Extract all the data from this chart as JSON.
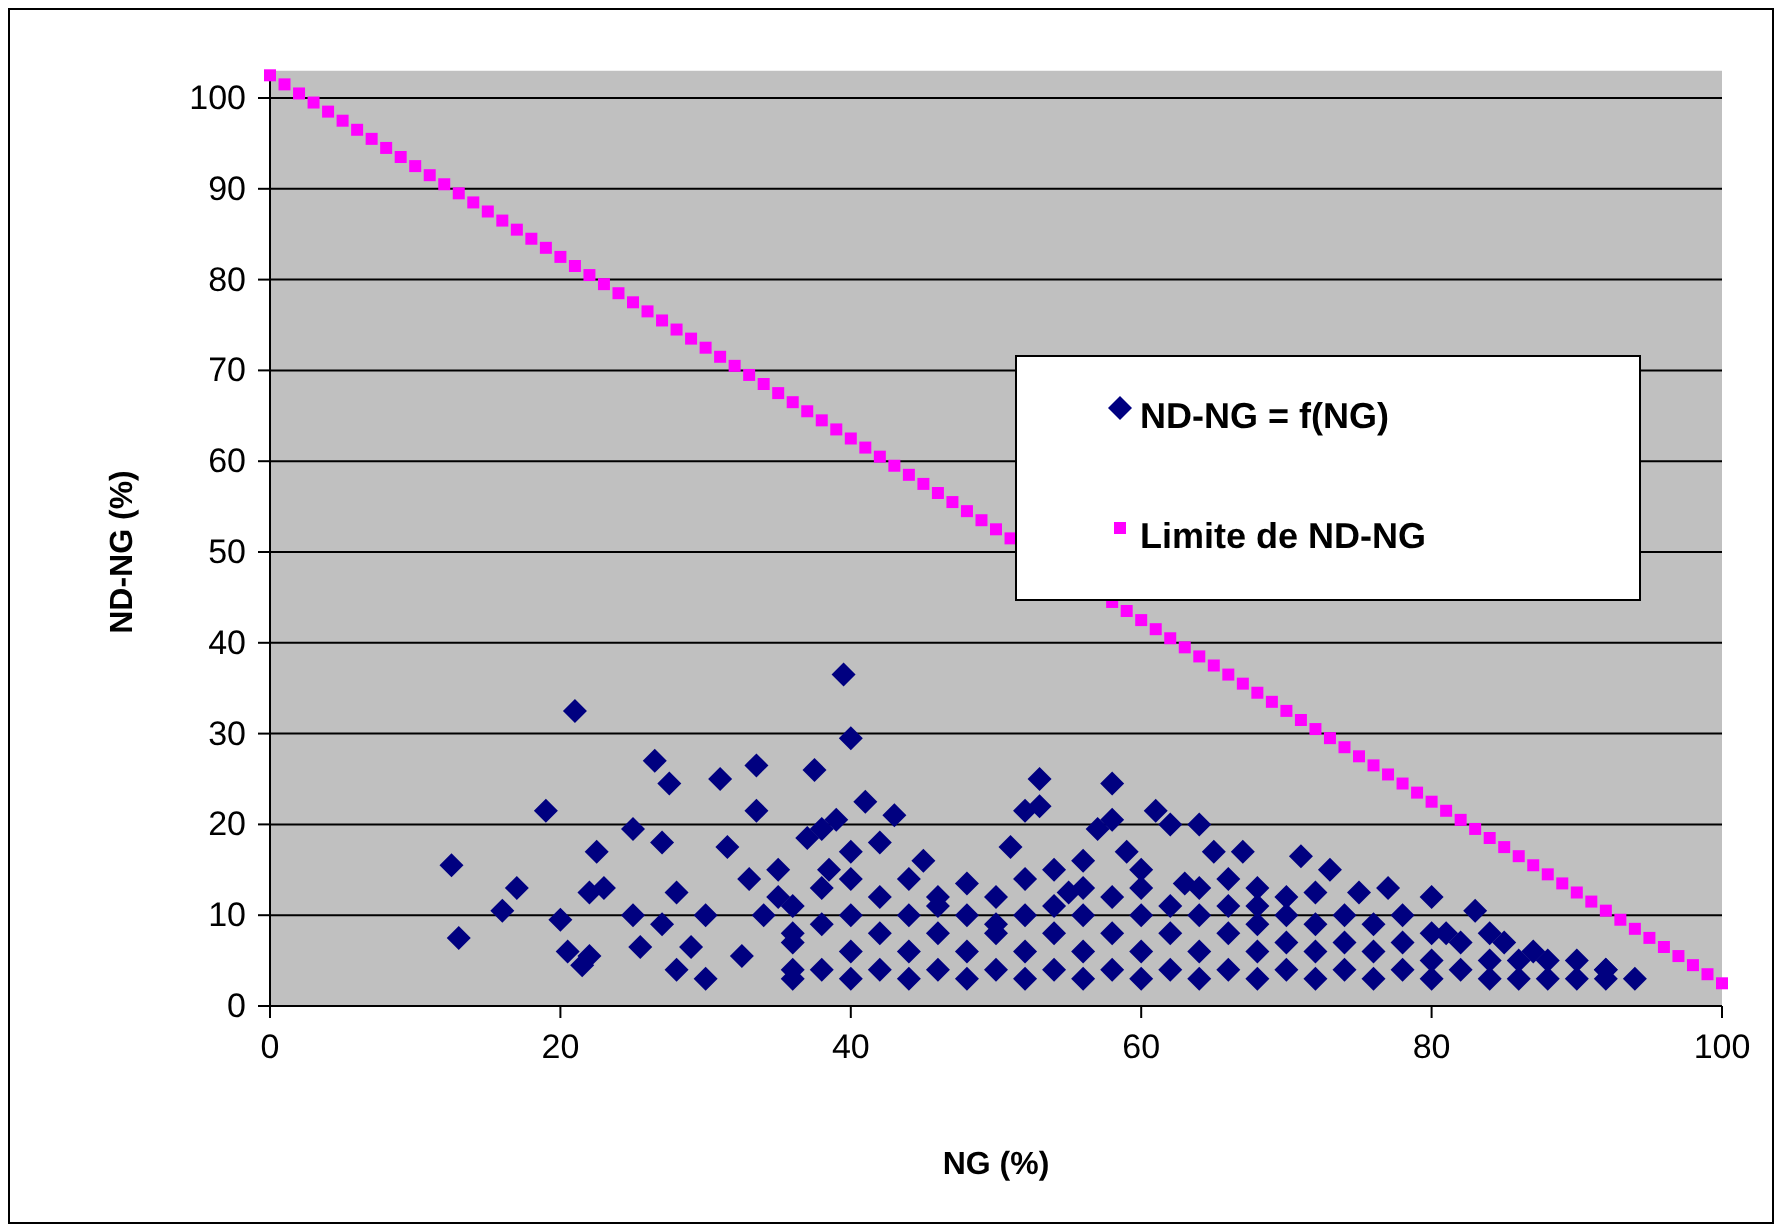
{
  "chart_data": {
    "type": "scatter",
    "xlabel": "NG (%)",
    "ylabel": "ND-NG (%)",
    "xlim": [
      0,
      100
    ],
    "xticks": [
      0,
      20,
      40,
      60,
      80,
      100
    ],
    "ylim": [
      0,
      103
    ],
    "yticks": [
      0,
      10,
      20,
      30,
      40,
      50,
      60,
      70,
      80,
      90,
      100
    ],
    "grid": "y",
    "legend": "right",
    "series": [
      {
        "name": "ND-NG = f(NG)",
        "color": "#000080",
        "marker": "diamond",
        "x": [
          12.5,
          13,
          16,
          17,
          19,
          20,
          20.5,
          21,
          21.5,
          22,
          22,
          22.5,
          23,
          25,
          25,
          25.5,
          26.5,
          27,
          27,
          27.5,
          28,
          28,
          29,
          30,
          30,
          31,
          31.5,
          32.5,
          33,
          33.5,
          33.5,
          34,
          35,
          35,
          36,
          36,
          37,
          37.5,
          38,
          38.5,
          39,
          39.5,
          40,
          40,
          41,
          42,
          43,
          44,
          45,
          46,
          48,
          50,
          51,
          52,
          53,
          53,
          54,
          55,
          56,
          57,
          58,
          58,
          59,
          60,
          61,
          62,
          63,
          64,
          65,
          66,
          67,
          68,
          70,
          71,
          72,
          73,
          75,
          77,
          78,
          80,
          81,
          83,
          85,
          87,
          90,
          92,
          94,
          36,
          36,
          36,
          38,
          38,
          38,
          40,
          40,
          40,
          40,
          42,
          42,
          42,
          44,
          44,
          44,
          46,
          46,
          46,
          48,
          48,
          48,
          50,
          50,
          50,
          52,
          52,
          52,
          52,
          54,
          54,
          54,
          56,
          56,
          56,
          56,
          58,
          58,
          58,
          60,
          60,
          60,
          60,
          62,
          62,
          62,
          64,
          64,
          64,
          64,
          66,
          66,
          66,
          68,
          68,
          68,
          68,
          70,
          70,
          70,
          72,
          72,
          72,
          74,
          74,
          74,
          76,
          76,
          76,
          78,
          78,
          80,
          80,
          80,
          82,
          82,
          84,
          84,
          84,
          86,
          86,
          88,
          88,
          90,
          92,
          92
        ],
        "values": [
          15.5,
          7.5,
          10.5,
          13,
          21.5,
          9.5,
          6,
          32.5,
          4.5,
          5.5,
          12.5,
          17,
          13,
          19.5,
          10,
          6.5,
          27,
          18,
          9,
          24.5,
          12.5,
          4,
          6.5,
          3,
          10,
          25,
          17.5,
          5.5,
          14,
          26.5,
          21.5,
          10,
          12,
          15,
          8,
          4,
          18.5,
          26,
          19.5,
          15,
          20.5,
          36.5,
          29.5,
          17,
          22.5,
          18,
          21,
          14,
          16,
          11,
          13.5,
          9,
          17.5,
          21.5,
          25,
          22,
          15,
          12.5,
          16,
          19.5,
          24.5,
          20.5,
          17,
          15,
          21.5,
          20,
          13.5,
          20,
          17,
          14,
          17,
          13,
          12,
          16.5,
          12.5,
          15,
          12.5,
          13,
          10,
          12,
          8,
          10.5,
          7,
          6,
          5,
          4,
          3,
          3,
          7,
          11,
          4,
          9,
          13,
          3,
          6,
          10,
          14,
          4,
          8,
          12,
          3,
          6,
          10,
          4,
          8,
          12,
          3,
          6,
          10,
          4,
          8,
          12,
          3,
          6,
          10,
          14,
          4,
          8,
          11,
          3,
          6,
          10,
          13,
          4,
          8,
          12,
          3,
          6,
          10,
          13,
          4,
          8,
          11,
          3,
          6,
          10,
          13,
          4,
          8,
          11,
          3,
          6,
          9,
          11,
          4,
          7,
          10,
          3,
          6,
          9,
          4,
          7,
          10,
          3,
          6,
          9,
          4,
          7,
          3,
          5,
          8,
          4,
          7,
          3,
          5,
          8,
          3,
          5,
          3,
          5,
          3,
          3,
          4
        ]
      },
      {
        "name": "Limite de ND-NG",
        "color": "#ff00ff",
        "marker": "square",
        "x": [
          0,
          1,
          2,
          3,
          4,
          5,
          6,
          7,
          8,
          9,
          10,
          11,
          12,
          13,
          14,
          15,
          16,
          17,
          18,
          19,
          20,
          21,
          22,
          23,
          24,
          25,
          26,
          27,
          28,
          29,
          30,
          31,
          32,
          33,
          34,
          35,
          36,
          37,
          38,
          39,
          40,
          41,
          42,
          43,
          44,
          45,
          46,
          47,
          48,
          49,
          50,
          51,
          52,
          53,
          54,
          55,
          56,
          57,
          58,
          59,
          60,
          61,
          62,
          63,
          64,
          65,
          66,
          67,
          68,
          69,
          70,
          71,
          72,
          73,
          74,
          75,
          76,
          77,
          78,
          79,
          80,
          81,
          82,
          83,
          84,
          85,
          86,
          87,
          88,
          89,
          90,
          91,
          92,
          93,
          94,
          95,
          96,
          97,
          98,
          99,
          100
        ],
        "values": [
          102.5,
          101.5,
          100.5,
          99.5,
          98.5,
          97.5,
          96.5,
          95.5,
          94.5,
          93.5,
          92.5,
          91.5,
          90.5,
          89.5,
          88.5,
          87.5,
          86.5,
          85.5,
          84.5,
          83.5,
          82.5,
          81.5,
          80.5,
          79.5,
          78.5,
          77.5,
          76.5,
          75.5,
          74.5,
          73.5,
          72.5,
          71.5,
          70.5,
          69.5,
          68.5,
          67.5,
          66.5,
          65.5,
          64.5,
          63.5,
          62.5,
          61.5,
          60.5,
          59.5,
          58.5,
          57.5,
          56.5,
          55.5,
          54.5,
          53.5,
          52.5,
          51.5,
          null,
          null,
          null,
          null,
          null,
          null,
          44.5,
          43.5,
          42.5,
          41.5,
          40.5,
          39.5,
          38.5,
          37.5,
          36.5,
          35.5,
          34.5,
          33.5,
          32.5,
          31.5,
          30.5,
          29.5,
          28.5,
          27.5,
          26.5,
          25.5,
          24.5,
          23.5,
          22.5,
          21.5,
          20.5,
          19.5,
          18.5,
          17.5,
          16.5,
          15.5,
          14.5,
          13.5,
          12.5,
          11.5,
          10.5,
          9.5,
          8.5,
          7.5,
          6.5,
          5.5,
          4.5,
          3.5,
          2.5
        ]
      }
    ]
  }
}
